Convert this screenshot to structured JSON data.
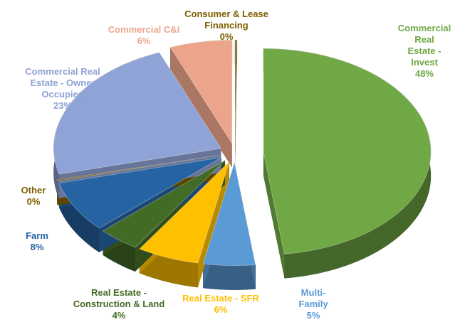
{
  "chart_data": {
    "type": "pie",
    "categories": [
      "Commercial Real\nEstate - Invest",
      "Multi-\nFamily",
      "Real Estate - SFR",
      "Real Estate -\nConstruction & Land",
      "Farm",
      "Other",
      "Commercial Real\nEstate - Owner\nOccupied",
      "Commercial C&I",
      "Consumer & Lease\nFinancing"
    ],
    "values": [
      48,
      5,
      6,
      4,
      8,
      0,
      23,
      6,
      0
    ],
    "value_labels": [
      "48%",
      "5%",
      "6%",
      "4%",
      "8%",
      "0%",
      "23%",
      "6%",
      "0%"
    ],
    "colors": [
      "#6fa844",
      "#5b9bd5",
      "#ffc000",
      "#426b25",
      "#2563a3",
      "#7f6000",
      "#8fa3d6",
      "#eca58b",
      "#8a6a1a"
    ]
  }
}
